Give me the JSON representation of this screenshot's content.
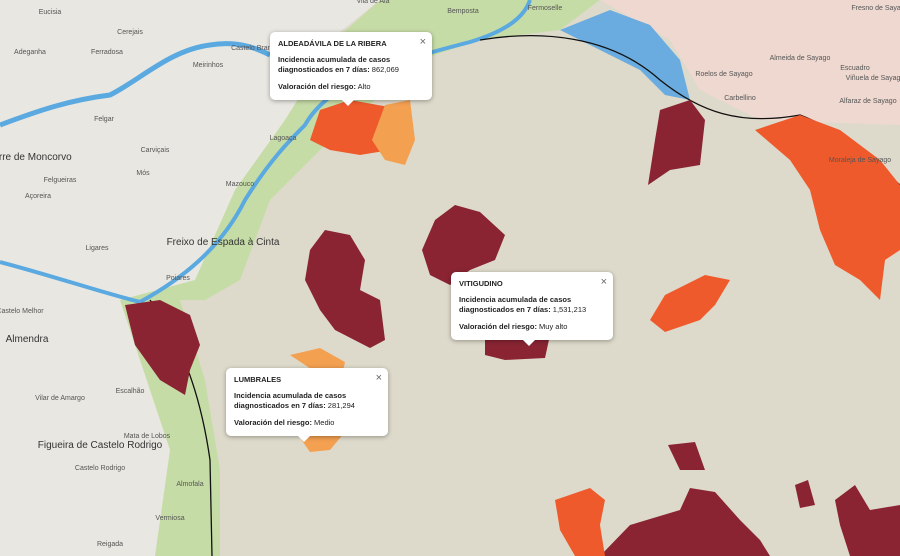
{
  "popups": [
    {
      "title": "ALDEADÁVILA DE LA RIBERA",
      "incidence_label": "Incidencia acumulada de casos diagnosticados en 7 días:",
      "incidence_value": "862,069",
      "risk_label": "Valoración del riesgo:",
      "risk_value": "Alto"
    },
    {
      "title": "VITIGUDINO",
      "incidence_label": "Incidencia acumulada de casos diagnosticados en 7 días:",
      "incidence_value": "1,531,213",
      "risk_label": "Valoración del riesgo:",
      "risk_value": "Muy alto"
    },
    {
      "title": "LUMBRALES",
      "incidence_label": "Incidencia acumulada de casos diagnosticados en 7 días:",
      "incidence_value": "281,294",
      "risk_label": "Valoración del riesgo:",
      "risk_value": "Medio"
    }
  ],
  "places": [
    {
      "name": "Eucisia"
    },
    {
      "name": "Cerejais"
    },
    {
      "name": "Adeganha"
    },
    {
      "name": "Ferradosa"
    },
    {
      "name": "Meirinhos"
    },
    {
      "name": "Castelo Branco"
    },
    {
      "name": "Vila de Ala"
    },
    {
      "name": "Bemposta"
    },
    {
      "name": "Fermoselle"
    },
    {
      "name": "Fresno de Sayago"
    },
    {
      "name": "Almeida de Sayago"
    },
    {
      "name": "Escuadro"
    },
    {
      "name": "Roelos de Sayago"
    },
    {
      "name": "Carbellino"
    },
    {
      "name": "Viñuela de Sayago"
    },
    {
      "name": "Alfaraz de Sayago"
    },
    {
      "name": "Moraleja de Sayago"
    },
    {
      "name": "Felgar"
    },
    {
      "name": "Torre de Moncorvo",
      "big": true
    },
    {
      "name": "Carviçais"
    },
    {
      "name": "Lagoaça"
    },
    {
      "name": "Mós"
    },
    {
      "name": "Felgueiras"
    },
    {
      "name": "Mazouco"
    },
    {
      "name": "Açoreira"
    },
    {
      "name": "Freixo de Espada à Cinta",
      "big": true
    },
    {
      "name": "Ligares"
    },
    {
      "name": "Poiares"
    },
    {
      "name": "Castelo Melhor"
    },
    {
      "name": "Almendra",
      "big": true
    },
    {
      "name": "Escalhão"
    },
    {
      "name": "Vilar de Amargo"
    },
    {
      "name": "Mata de Lobos"
    },
    {
      "name": "Figueira de Castelo Rodrigo",
      "big": true
    },
    {
      "name": "Castelo Rodrigo"
    },
    {
      "name": "Almofala"
    },
    {
      "name": "Vermiosa"
    },
    {
      "name": "Reigada"
    }
  ]
}
